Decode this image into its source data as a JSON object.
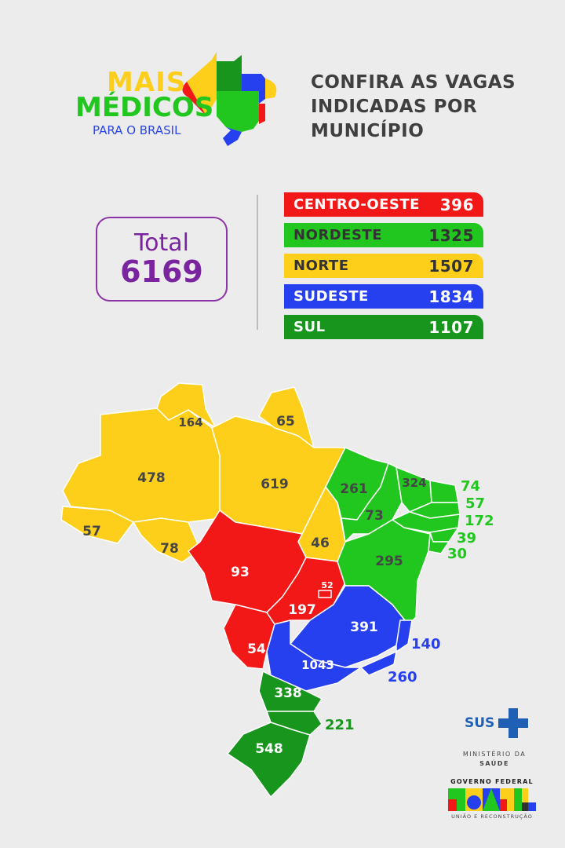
{
  "logo": {
    "line1": "MAIS",
    "line2": "MÉDICOS",
    "line3": "PARA O BRASIL"
  },
  "headline": "CONFIRA AS VAGAS INDICADAS POR MUNICÍPIO",
  "total": {
    "label": "Total",
    "value": "6169"
  },
  "regions": [
    {
      "name": "CENTRO-OESTE",
      "value": "396",
      "color": "#f21818"
    },
    {
      "name": "NORDESTE",
      "value": "1325",
      "color": "#21c71f"
    },
    {
      "name": "NORTE",
      "value": "1507",
      "color": "#fdcf1a"
    },
    {
      "name": "SUDESTE",
      "value": "1834",
      "color": "#2640f0"
    },
    {
      "name": "SUL",
      "value": "1107",
      "color": "#17951c"
    }
  ],
  "states": {
    "RR": "164",
    "AP": "65",
    "AM": "478",
    "PA": "619",
    "AC": "57",
    "RO": "78",
    "TO": "46",
    "MT": "93",
    "MS": "54",
    "GO": "197",
    "DF": "52",
    "MA": "261",
    "PI": "73",
    "CE": "324",
    "RN": "74",
    "PB": "57",
    "PE": "172",
    "AL": "39",
    "SE": "30",
    "BA": "295",
    "MG": "391",
    "ES": "140",
    "RJ": "260",
    "SP": "1043",
    "PR": "338",
    "SC": "221",
    "RS": "548"
  },
  "footer": {
    "sus": "SUS",
    "ministry_line1": "MINISTÉRIO DA",
    "ministry_line2": "SAÚDE",
    "gov": "GOVERNO FEDERAL",
    "brasil": "BRASIL",
    "slogan": "UNIÃO E RECONSTRUÇÃO"
  }
}
